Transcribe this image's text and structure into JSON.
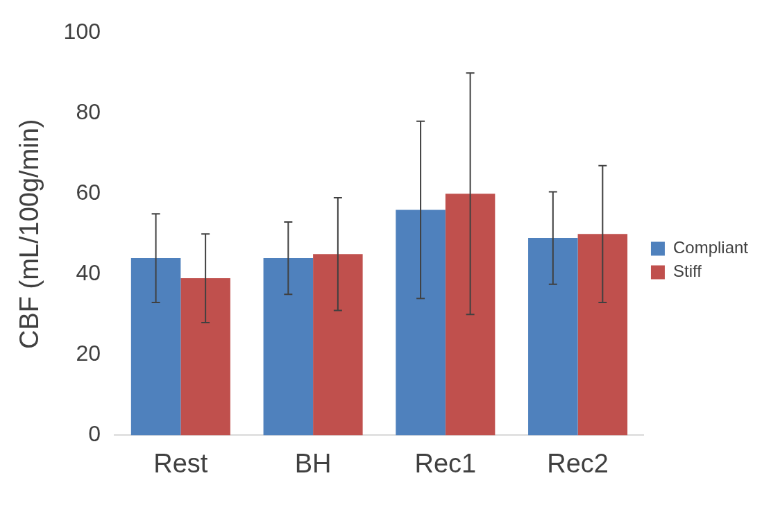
{
  "chart_data": {
    "type": "bar",
    "ylabel": "CBF (mL/100g/min)",
    "categories": [
      "Rest",
      "BH",
      "Rec1",
      "Rec2"
    ],
    "series": [
      {
        "name": "Compliant",
        "color": "#4f81bd",
        "values": [
          44,
          44,
          56,
          49
        ],
        "errors": [
          11,
          9,
          22,
          11.5
        ]
      },
      {
        "name": "Stiff",
        "color": "#c0504d",
        "values": [
          39,
          45,
          60,
          50
        ],
        "errors": [
          11,
          14,
          30,
          17
        ]
      }
    ],
    "ylim": [
      0,
      100
    ],
    "yticks": [
      0,
      20,
      40,
      60,
      80,
      100
    ],
    "grid": false,
    "legend": "right"
  }
}
